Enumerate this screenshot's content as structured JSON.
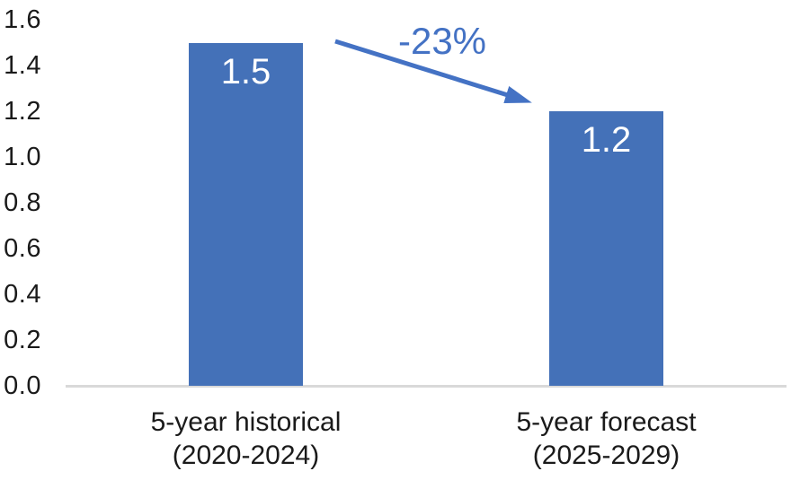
{
  "chart_data": {
    "type": "bar",
    "title": "",
    "xlabel": "",
    "ylabel": "",
    "grid": false,
    "legend": null,
    "categories": [
      {
        "line1": "5-year historical",
        "line2": "(2020-2024)"
      },
      {
        "line1": "5-year forecast",
        "line2": "(2025-2029)"
      }
    ],
    "values": [
      1.5,
      1.2
    ],
    "bar_labels": [
      "1.5",
      "1.2"
    ],
    "y_ticks": [
      "1.6",
      "1.4",
      "1.2",
      "1.0",
      "0.8",
      "0.6",
      "0.4",
      "0.2",
      "0.0"
    ],
    "ylim": [
      0,
      1.6
    ],
    "annotation": {
      "label": "-23%",
      "shape": "decline-arrow"
    },
    "colors": {
      "bar": "#4471b8",
      "accent": "#4472c4",
      "axis_line": "#d9d9d9",
      "text": "#1a1a1a",
      "bar_label_text": "#ffffff"
    }
  }
}
